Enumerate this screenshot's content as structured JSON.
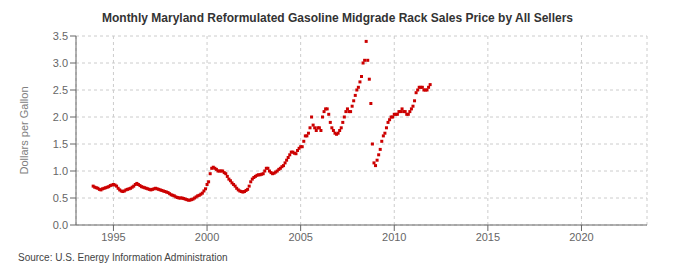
{
  "chart_data": {
    "type": "scatter",
    "title": "Monthly Maryland Reformulated Gasoline Midgrade Rack Sales Price by All Sellers",
    "ylabel": "Dollars per Gallon",
    "annotation": "Source: U.S. Energy Information Administration",
    "color": "#cc0000",
    "marker": "square",
    "grid": true,
    "xlim": [
      1993.0,
      2023.5
    ],
    "ylim": [
      0.0,
      3.5
    ],
    "xticks": [
      1995,
      2000,
      2005,
      2010,
      2015,
      2020
    ],
    "yticks": [
      {
        "value": 0.0,
        "label": "0.0"
      },
      0.5,
      {
        "value": 1.0,
        "label": "1.0"
      },
      1.5,
      {
        "value": 2.0,
        "label": "2.0"
      },
      2.5,
      {
        "value": 3.0,
        "label": "3.0"
      },
      3.5
    ],
    "x": [
      1993.917,
      1994.0,
      1994.083,
      1994.167,
      1994.25,
      1994.333,
      1994.417,
      1994.5,
      1994.583,
      1994.667,
      1994.75,
      1994.833,
      1994.917,
      1995.0,
      1995.083,
      1995.167,
      1995.25,
      1995.333,
      1995.417,
      1995.5,
      1995.583,
      1995.667,
      1995.75,
      1995.833,
      1995.917,
      1996.0,
      1996.083,
      1996.167,
      1996.25,
      1996.333,
      1996.417,
      1996.5,
      1996.583,
      1996.667,
      1996.75,
      1996.833,
      1996.917,
      1997.0,
      1997.083,
      1997.167,
      1997.25,
      1997.333,
      1997.417,
      1997.5,
      1997.583,
      1997.667,
      1997.75,
      1997.833,
      1997.917,
      1998.0,
      1998.083,
      1998.167,
      1998.25,
      1998.333,
      1998.417,
      1998.5,
      1998.583,
      1998.667,
      1998.75,
      1998.833,
      1998.917,
      1999.0,
      1999.083,
      1999.167,
      1999.25,
      1999.333,
      1999.417,
      1999.5,
      1999.583,
      1999.667,
      1999.75,
      1999.833,
      1999.917,
      2000.0,
      2000.083,
      2000.167,
      2000.25,
      2000.333,
      2000.417,
      2000.5,
      2000.583,
      2000.667,
      2000.75,
      2000.833,
      2000.917,
      2001.0,
      2001.083,
      2001.167,
      2001.25,
      2001.333,
      2001.417,
      2001.5,
      2001.583,
      2001.667,
      2001.75,
      2001.833,
      2001.917,
      2002.0,
      2002.083,
      2002.167,
      2002.25,
      2002.333,
      2002.417,
      2002.5,
      2002.583,
      2002.667,
      2002.75,
      2002.833,
      2002.917,
      2003.0,
      2003.083,
      2003.167,
      2003.25,
      2003.333,
      2003.417,
      2003.5,
      2003.583,
      2003.667,
      2003.75,
      2003.833,
      2003.917,
      2004.0,
      2004.083,
      2004.167,
      2004.25,
      2004.333,
      2004.417,
      2004.5,
      2004.583,
      2004.667,
      2004.75,
      2004.833,
      2004.917,
      2005.0,
      2005.083,
      2005.167,
      2005.25,
      2005.333,
      2005.417,
      2005.5,
      2005.583,
      2005.667,
      2005.75,
      2005.833,
      2005.917,
      2006.0,
      2006.083,
      2006.167,
      2006.25,
      2006.333,
      2006.417,
      2006.5,
      2006.583,
      2006.667,
      2006.75,
      2006.833,
      2006.917,
      2007.0,
      2007.083,
      2007.167,
      2007.25,
      2007.333,
      2007.417,
      2007.5,
      2007.583,
      2007.667,
      2007.75,
      2007.833,
      2007.917,
      2008.0,
      2008.083,
      2008.167,
      2008.25,
      2008.333,
      2008.417,
      2008.5,
      2008.583,
      2008.667,
      2008.75,
      2008.833,
      2008.917,
      2009.0,
      2009.083,
      2009.167,
      2009.25,
      2009.333,
      2009.417,
      2009.5,
      2009.583,
      2009.667,
      2009.75,
      2009.833,
      2009.917,
      2010.0,
      2010.083,
      2010.167,
      2010.25,
      2010.333,
      2010.417,
      2010.5,
      2010.583,
      2010.667,
      2010.75,
      2010.833,
      2010.917,
      2011.0,
      2011.083,
      2011.167,
      2011.25,
      2011.333,
      2011.417,
      2011.5,
      2011.583,
      2011.667,
      2011.75,
      2011.833,
      2011.917
    ],
    "values": [
      0.72,
      0.7,
      0.69,
      0.68,
      0.66,
      0.65,
      0.67,
      0.68,
      0.69,
      0.7,
      0.71,
      0.73,
      0.74,
      0.75,
      0.74,
      0.72,
      0.68,
      0.65,
      0.63,
      0.62,
      0.63,
      0.65,
      0.66,
      0.67,
      0.68,
      0.7,
      0.72,
      0.75,
      0.77,
      0.75,
      0.73,
      0.71,
      0.7,
      0.69,
      0.68,
      0.67,
      0.66,
      0.65,
      0.66,
      0.67,
      0.68,
      0.67,
      0.66,
      0.65,
      0.64,
      0.63,
      0.62,
      0.61,
      0.6,
      0.58,
      0.56,
      0.55,
      0.54,
      0.52,
      0.51,
      0.5,
      0.5,
      0.5,
      0.49,
      0.48,
      0.47,
      0.46,
      0.46,
      0.47,
      0.48,
      0.5,
      0.52,
      0.54,
      0.55,
      0.57,
      0.59,
      0.63,
      0.67,
      0.75,
      0.8,
      0.95,
      1.05,
      1.07,
      1.05,
      1.03,
      1.0,
      1.0,
      1.0,
      1.0,
      0.97,
      0.95,
      0.9,
      0.85,
      0.82,
      0.78,
      0.75,
      0.72,
      0.68,
      0.65,
      0.63,
      0.62,
      0.61,
      0.62,
      0.64,
      0.66,
      0.72,
      0.8,
      0.85,
      0.88,
      0.9,
      0.92,
      0.93,
      0.93,
      0.94,
      0.95,
      1.0,
      1.05,
      1.05,
      1.0,
      0.97,
      0.95,
      0.96,
      0.98,
      1.0,
      1.03,
      1.05,
      1.08,
      1.1,
      1.15,
      1.2,
      1.25,
      1.3,
      1.35,
      1.35,
      1.33,
      1.32,
      1.38,
      1.42,
      1.45,
      1.45,
      1.55,
      1.65,
      1.65,
      1.7,
      1.8,
      2.0,
      1.85,
      1.8,
      1.75,
      1.8,
      1.8,
      1.75,
      2.0,
      2.1,
      2.15,
      2.15,
      2.05,
      1.9,
      1.8,
      1.75,
      1.7,
      1.68,
      1.7,
      1.75,
      1.8,
      1.9,
      2.0,
      2.1,
      2.15,
      2.1,
      2.1,
      2.2,
      2.3,
      2.4,
      2.5,
      2.55,
      2.65,
      2.75,
      3.0,
      3.05,
      3.4,
      3.05,
      2.7,
      2.25,
      1.5,
      1.15,
      1.1,
      1.2,
      1.3,
      1.4,
      1.55,
      1.65,
      1.7,
      1.8,
      1.9,
      1.95,
      2.0,
      2.0,
      2.05,
      2.05,
      2.05,
      2.1,
      2.1,
      2.15,
      2.1,
      2.1,
      2.05,
      2.05,
      2.1,
      2.15,
      2.2,
      2.3,
      2.45,
      2.5,
      2.55,
      2.55,
      2.55,
      2.5,
      2.5,
      2.5,
      2.55,
      2.6
    ]
  }
}
